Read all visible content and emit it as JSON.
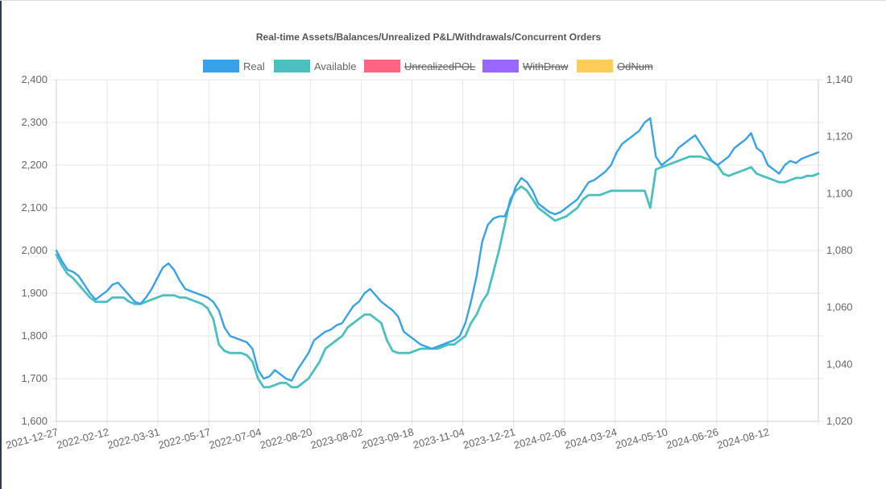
{
  "chart_data": {
    "type": "line",
    "title": "Real-time Assets/Balances/Unrealized P&L/Withdrawals/Concurrent Orders",
    "x_tick_labels": [
      "2021-12-27",
      "2022-02-12",
      "2022-03-31",
      "2022-05-17",
      "2022-07-04",
      "2022-08-20",
      "2023-08-02",
      "2023-09-18",
      "2023-11-04",
      "2023-12-21",
      "2024-02-06",
      "2024-03-24",
      "2024-05-10",
      "2024-06-26",
      "2024-08-12"
    ],
    "y_left": {
      "ticks": [
        "1,600",
        "1,700",
        "1,800",
        "1,900",
        "2,000",
        "2,100",
        "2,200",
        "2,300",
        "2,400"
      ],
      "ylim": [
        1600,
        2400
      ]
    },
    "y_right": {
      "ticks": [
        "1,020",
        "1,040",
        "1,060",
        "1,080",
        "1,100",
        "1,120",
        "1,140"
      ],
      "ylim": [
        1020,
        1140
      ]
    },
    "legend": [
      {
        "name": "Real",
        "color": "#36a2eb",
        "hidden": false
      },
      {
        "name": "Available",
        "color": "#4bc0c0",
        "hidden": false
      },
      {
        "name": "UnrealizedPOL",
        "color": "#ff6384",
        "hidden": true
      },
      {
        "name": "WithDraw",
        "color": "#9966ff",
        "hidden": true
      },
      {
        "name": "OdNum",
        "color": "#ffcd56",
        "hidden": true
      }
    ],
    "series": [
      {
        "name": "Real",
        "color": "#36a2eb",
        "values": [
          2000,
          1975,
          1955,
          1950,
          1940,
          1920,
          1900,
          1885,
          1895,
          1905,
          1920,
          1925,
          1910,
          1895,
          1880,
          1875,
          1890,
          1910,
          1935,
          1960,
          1970,
          1955,
          1930,
          1910,
          1905,
          1900,
          1895,
          1890,
          1880,
          1860,
          1820,
          1800,
          1795,
          1790,
          1785,
          1770,
          1720,
          1700,
          1705,
          1720,
          1710,
          1700,
          1695,
          1720,
          1740,
          1760,
          1790,
          1800,
          1810,
          1815,
          1825,
          1830,
          1850,
          1870,
          1880,
          1900,
          1910,
          1895,
          1880,
          1870,
          1860,
          1845,
          1810,
          1800,
          1790,
          1780,
          1775,
          1770,
          1775,
          1780,
          1785,
          1790,
          1800,
          1830,
          1880,
          1940,
          2020,
          2060,
          2075,
          2080,
          2080,
          2110,
          2150,
          2170,
          2160,
          2140,
          2110,
          2100,
          2090,
          2085,
          2090,
          2100,
          2110,
          2120,
          2140,
          2160,
          2165,
          2175,
          2185,
          2200,
          2230,
          2250,
          2260,
          2270,
          2280,
          2300,
          2310,
          2220,
          2200,
          2210,
          2220,
          2240,
          2250,
          2260,
          2270,
          2250,
          2230,
          2210,
          2200,
          2210,
          2220,
          2240,
          2250,
          2260,
          2275,
          2240,
          2230,
          2200,
          2190,
          2180,
          2200,
          2210,
          2205,
          2215,
          2220,
          2225,
          2230
        ]
      },
      {
        "name": "Available",
        "color": "#4bc0c0",
        "values": [
          1990,
          1965,
          1945,
          1935,
          1920,
          1905,
          1890,
          1880,
          1880,
          1880,
          1890,
          1890,
          1890,
          1880,
          1875,
          1875,
          1880,
          1885,
          1890,
          1895,
          1895,
          1895,
          1890,
          1890,
          1885,
          1880,
          1875,
          1865,
          1840,
          1780,
          1765,
          1760,
          1760,
          1760,
          1755,
          1740,
          1700,
          1680,
          1680,
          1685,
          1690,
          1690,
          1680,
          1680,
          1690,
          1700,
          1720,
          1740,
          1770,
          1780,
          1790,
          1800,
          1820,
          1830,
          1840,
          1850,
          1850,
          1840,
          1830,
          1790,
          1765,
          1760,
          1760,
          1760,
          1765,
          1770,
          1770,
          1770,
          1770,
          1775,
          1780,
          1780,
          1790,
          1800,
          1830,
          1850,
          1880,
          1900,
          1950,
          2000,
          2060,
          2120,
          2140,
          2150,
          2140,
          2120,
          2100,
          2090,
          2080,
          2070,
          2075,
          2080,
          2090,
          2100,
          2120,
          2130,
          2130,
          2130,
          2135,
          2140,
          2140,
          2140,
          2140,
          2140,
          2140,
          2140,
          2100,
          2190,
          2195,
          2200,
          2205,
          2210,
          2215,
          2220,
          2220,
          2220,
          2215,
          2210,
          2200,
          2180,
          2175,
          2180,
          2185,
          2190,
          2195,
          2180,
          2175,
          2170,
          2165,
          2160,
          2160,
          2165,
          2170,
          2170,
          2175,
          2175,
          2180
        ]
      }
    ]
  }
}
